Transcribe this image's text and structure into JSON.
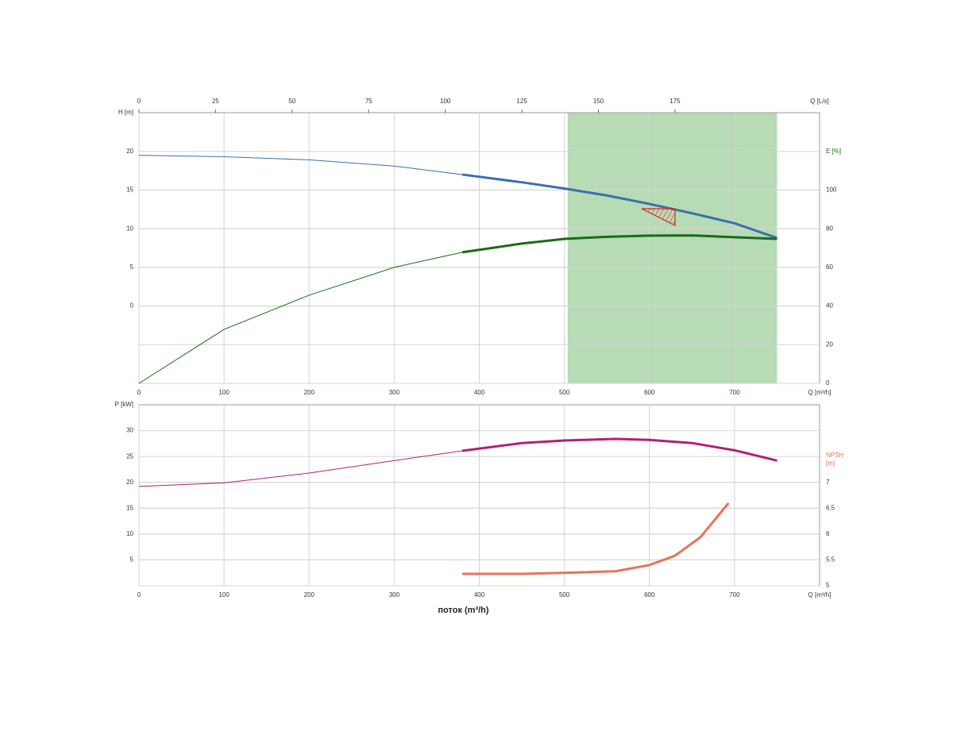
{
  "chart_data": [
    {
      "type": "line",
      "x_label": "Q [m³/h]",
      "xlim": [
        0,
        800
      ],
      "xticks": [
        0,
        100,
        200,
        300,
        400,
        500,
        600,
        700
      ],
      "x2_label": "Q [L/s]",
      "x2lim": [
        0,
        222.2
      ],
      "x2ticks": [
        0,
        25,
        50,
        75,
        100,
        125,
        150,
        175
      ],
      "y_label": "H [m]",
      "ylim": [
        -10,
        25
      ],
      "yticks": [
        0,
        5,
        10,
        15,
        20
      ],
      "y_color": "#3a6fb0",
      "y2_label": "E [%]",
      "y2lim": [
        0,
        140
      ],
      "y2ticks": [
        0,
        20,
        40,
        60,
        80,
        100
      ],
      "y2_color": "#1a6b1a",
      "grid": true,
      "bold_from": 380,
      "shaded_range": [
        504,
        750
      ],
      "shade_color": "#b7dbb5",
      "series": [
        {
          "color": "#3a6fb0",
          "x": [
            0,
            100,
            200,
            300,
            380,
            450,
            500,
            550,
            600,
            650,
            700,
            750
          ],
          "values": [
            19.5,
            19.3,
            18.9,
            18.1,
            17.0,
            16.0,
            15.2,
            14.3,
            13.2,
            12.0,
            10.7,
            8.8
          ]
        },
        {
          "color": "#1a6b1a",
          "axis": "y2",
          "x": [
            0,
            100,
            200,
            300,
            380,
            450,
            500,
            550,
            600,
            650,
            700,
            750
          ],
          "values": [
            0,
            27.9,
            45.6,
            60,
            67.8,
            72.3,
            74.7,
            75.8,
            76.4,
            76.5,
            75.6,
            74.7
          ]
        }
      ]
    },
    {
      "type": "line",
      "title": "поток (m³/h)",
      "x_label": "Q [m³/h]",
      "xlim": [
        0,
        800
      ],
      "xticks": [
        0,
        100,
        200,
        300,
        400,
        500,
        600,
        700
      ],
      "y_label": "P [kW]",
      "ylim": [
        0,
        35
      ],
      "yticks": [
        5,
        10,
        15,
        20,
        25,
        30
      ],
      "y_color": "#b0207a",
      "y2_label": "NPSH [m]",
      "y2lim": [
        5,
        8.5
      ],
      "y2ticks": [
        5,
        5.5,
        6,
        6.5,
        7
      ],
      "y2_color": "#e8735a",
      "grid": true,
      "bold_from": 380,
      "series": [
        {
          "color": "#b0207a",
          "x": [
            0,
            100,
            200,
            300,
            380,
            450,
            500,
            560,
            600,
            650,
            700,
            750
          ],
          "values": [
            19.2,
            19.9,
            21.8,
            24.2,
            26.1,
            27.6,
            28.1,
            28.4,
            28.2,
            27.6,
            26.2,
            24.2
          ]
        },
        {
          "color": "#e8735a",
          "axis": "y2",
          "x": [
            380,
            450,
            500,
            560,
            600,
            630,
            660,
            693
          ],
          "values": [
            5.23,
            5.23,
            5.25,
            5.28,
            5.4,
            5.58,
            5.94,
            6.6
          ]
        }
      ]
    }
  ]
}
